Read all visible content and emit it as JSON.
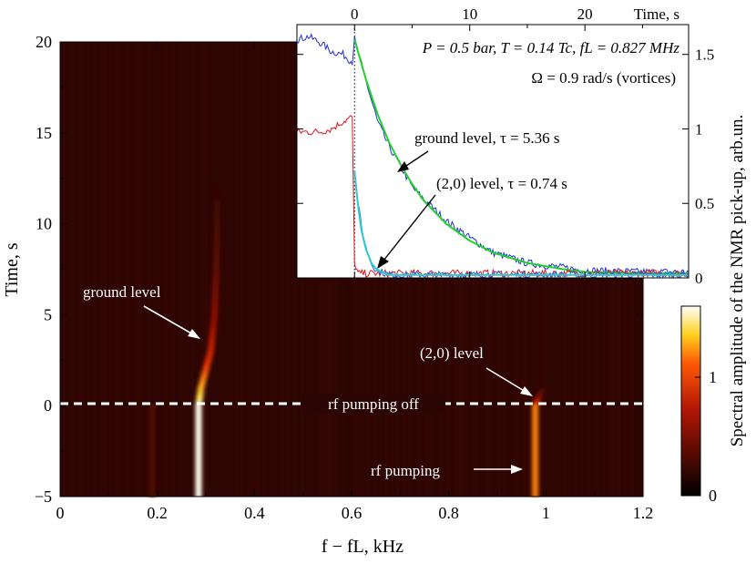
{
  "chart_data": [
    {
      "type": "heatmap",
      "xlabel": "f − fL, kHz",
      "ylabel": "Time, s",
      "xlim": [
        0,
        1.2
      ],
      "ylim": [
        -5,
        20
      ],
      "xticks": [
        "0",
        "0.2",
        "0.4",
        "0.6",
        "0.8",
        "1",
        "1.2"
      ],
      "yticks": [
        "−5",
        "0",
        "5",
        "10",
        "15",
        "20"
      ],
      "colorbar": {
        "label": "Spectral amplitude of the NMR pick-up, arb.un.",
        "ticks": [
          "0",
          "1"
        ],
        "range": [
          0,
          1.6
        ]
      },
      "colors": {
        "background": "#2a0503",
        "hot": "#fffef0",
        "colorbar_low": "#000000",
        "colorbar_mid": "#d01a05",
        "colorbar_high": "#ffffff"
      },
      "tracks": [
        {
          "name": "ground level",
          "t": [
            -5,
            0,
            1,
            2,
            3,
            5,
            8,
            12
          ],
          "f": [
            0.285,
            0.285,
            0.29,
            0.3,
            0.31,
            0.318,
            0.322,
            0.324
          ],
          "amplitude": [
            1.6,
            1.6,
            1.25,
            0.95,
            0.75,
            0.5,
            0.25,
            0.05
          ]
        },
        {
          "name": "(2,0) level",
          "t": [
            -5,
            0,
            0.5,
            1
          ],
          "f": [
            0.978,
            0.978,
            0.985,
            0.995
          ],
          "amplitude": [
            1.1,
            1.1,
            0.45,
            0.05
          ]
        },
        {
          "name": "weak line",
          "t": [
            -5,
            0
          ],
          "f": [
            0.19,
            0.19
          ],
          "amplitude": [
            0.18,
            0.18
          ]
        }
      ],
      "annotations": [
        {
          "text": "ground level",
          "arrow_to": [
            0.29,
            3.4
          ]
        },
        {
          "text": "(2,0) level",
          "arrow_to": [
            0.975,
            0.4
          ]
        },
        {
          "text": "rf pumping",
          "arrow_to": [
            0.955,
            -3.6
          ]
        },
        {
          "text": "rf pumping off",
          "line_at_time": 0
        }
      ]
    },
    {
      "type": "line",
      "xlabel": "Time, s",
      "ylabel": "",
      "xlim": [
        -5,
        29
      ],
      "ylim": [
        0,
        1.7
      ],
      "xticks": [
        "0",
        "10",
        "20"
      ],
      "yticks": [
        "0",
        "0.5",
        "1",
        "1.5"
      ],
      "info_line1": "P = 0.5 bar, T = 0.14 Tc, fL = 0.827 MHz",
      "info_line2": "Ω = 0.9 rad/s (vortices)",
      "series": [
        {
          "name": "ground level",
          "color": "#1f2fd6",
          "x": [
            -5,
            -4,
            -3,
            -2,
            -1,
            -0.2,
            0,
            1,
            2,
            3,
            4,
            5,
            6,
            8,
            10,
            12,
            15,
            20,
            25,
            29
          ],
          "y": [
            1.6,
            1.62,
            1.58,
            1.52,
            1.5,
            1.45,
            1.6,
            1.32,
            1.05,
            0.88,
            0.75,
            0.61,
            0.53,
            0.38,
            0.27,
            0.17,
            0.1,
            0.05,
            0.04,
            0.04
          ]
        },
        {
          "name": "ground level fit",
          "color": "#22d12a",
          "x": [
            0,
            1,
            2,
            3,
            4,
            5,
            6,
            8,
            10,
            12,
            15,
            18,
            20,
            25,
            29
          ],
          "y": [
            1.6,
            1.33,
            1.1,
            0.91,
            0.76,
            0.63,
            0.52,
            0.36,
            0.25,
            0.17,
            0.1,
            0.06,
            0.04,
            0.03,
            0.03
          ]
        },
        {
          "name": "(2,0) level",
          "color": "#e0141c",
          "x": [
            -5,
            -4,
            -3,
            -2,
            -1,
            -0.2,
            0,
            0.3,
            1,
            29
          ],
          "y": [
            0.98,
            0.98,
            0.98,
            1.0,
            1.05,
            1.08,
            0.1,
            0.03,
            0.03,
            0.03
          ]
        },
        {
          "name": "(2,0) level decay",
          "color": "#2060e0",
          "x": [
            0,
            0.3,
            0.6,
            1,
            1.5,
            2,
            3,
            4,
            29
          ],
          "y": [
            0.72,
            0.5,
            0.35,
            0.2,
            0.09,
            0.05,
            0.02,
            0.02,
            0.02
          ]
        },
        {
          "name": "(2,0) level fit",
          "color": "#30c8d0",
          "x": [
            0,
            0.3,
            0.6,
            1,
            1.5,
            2,
            3,
            4,
            29
          ],
          "y": [
            0.72,
            0.49,
            0.32,
            0.19,
            0.095,
            0.05,
            0.02,
            0.02,
            0.02
          ]
        }
      ],
      "annotations": [
        {
          "text": "ground level, τ = 5.36 s",
          "arrow_to": [
            3.2,
            0.67
          ]
        },
        {
          "text": "(2,0) level, τ = 0.74 s",
          "arrow_to": [
            1.6,
            0.08
          ]
        }
      ]
    }
  ]
}
